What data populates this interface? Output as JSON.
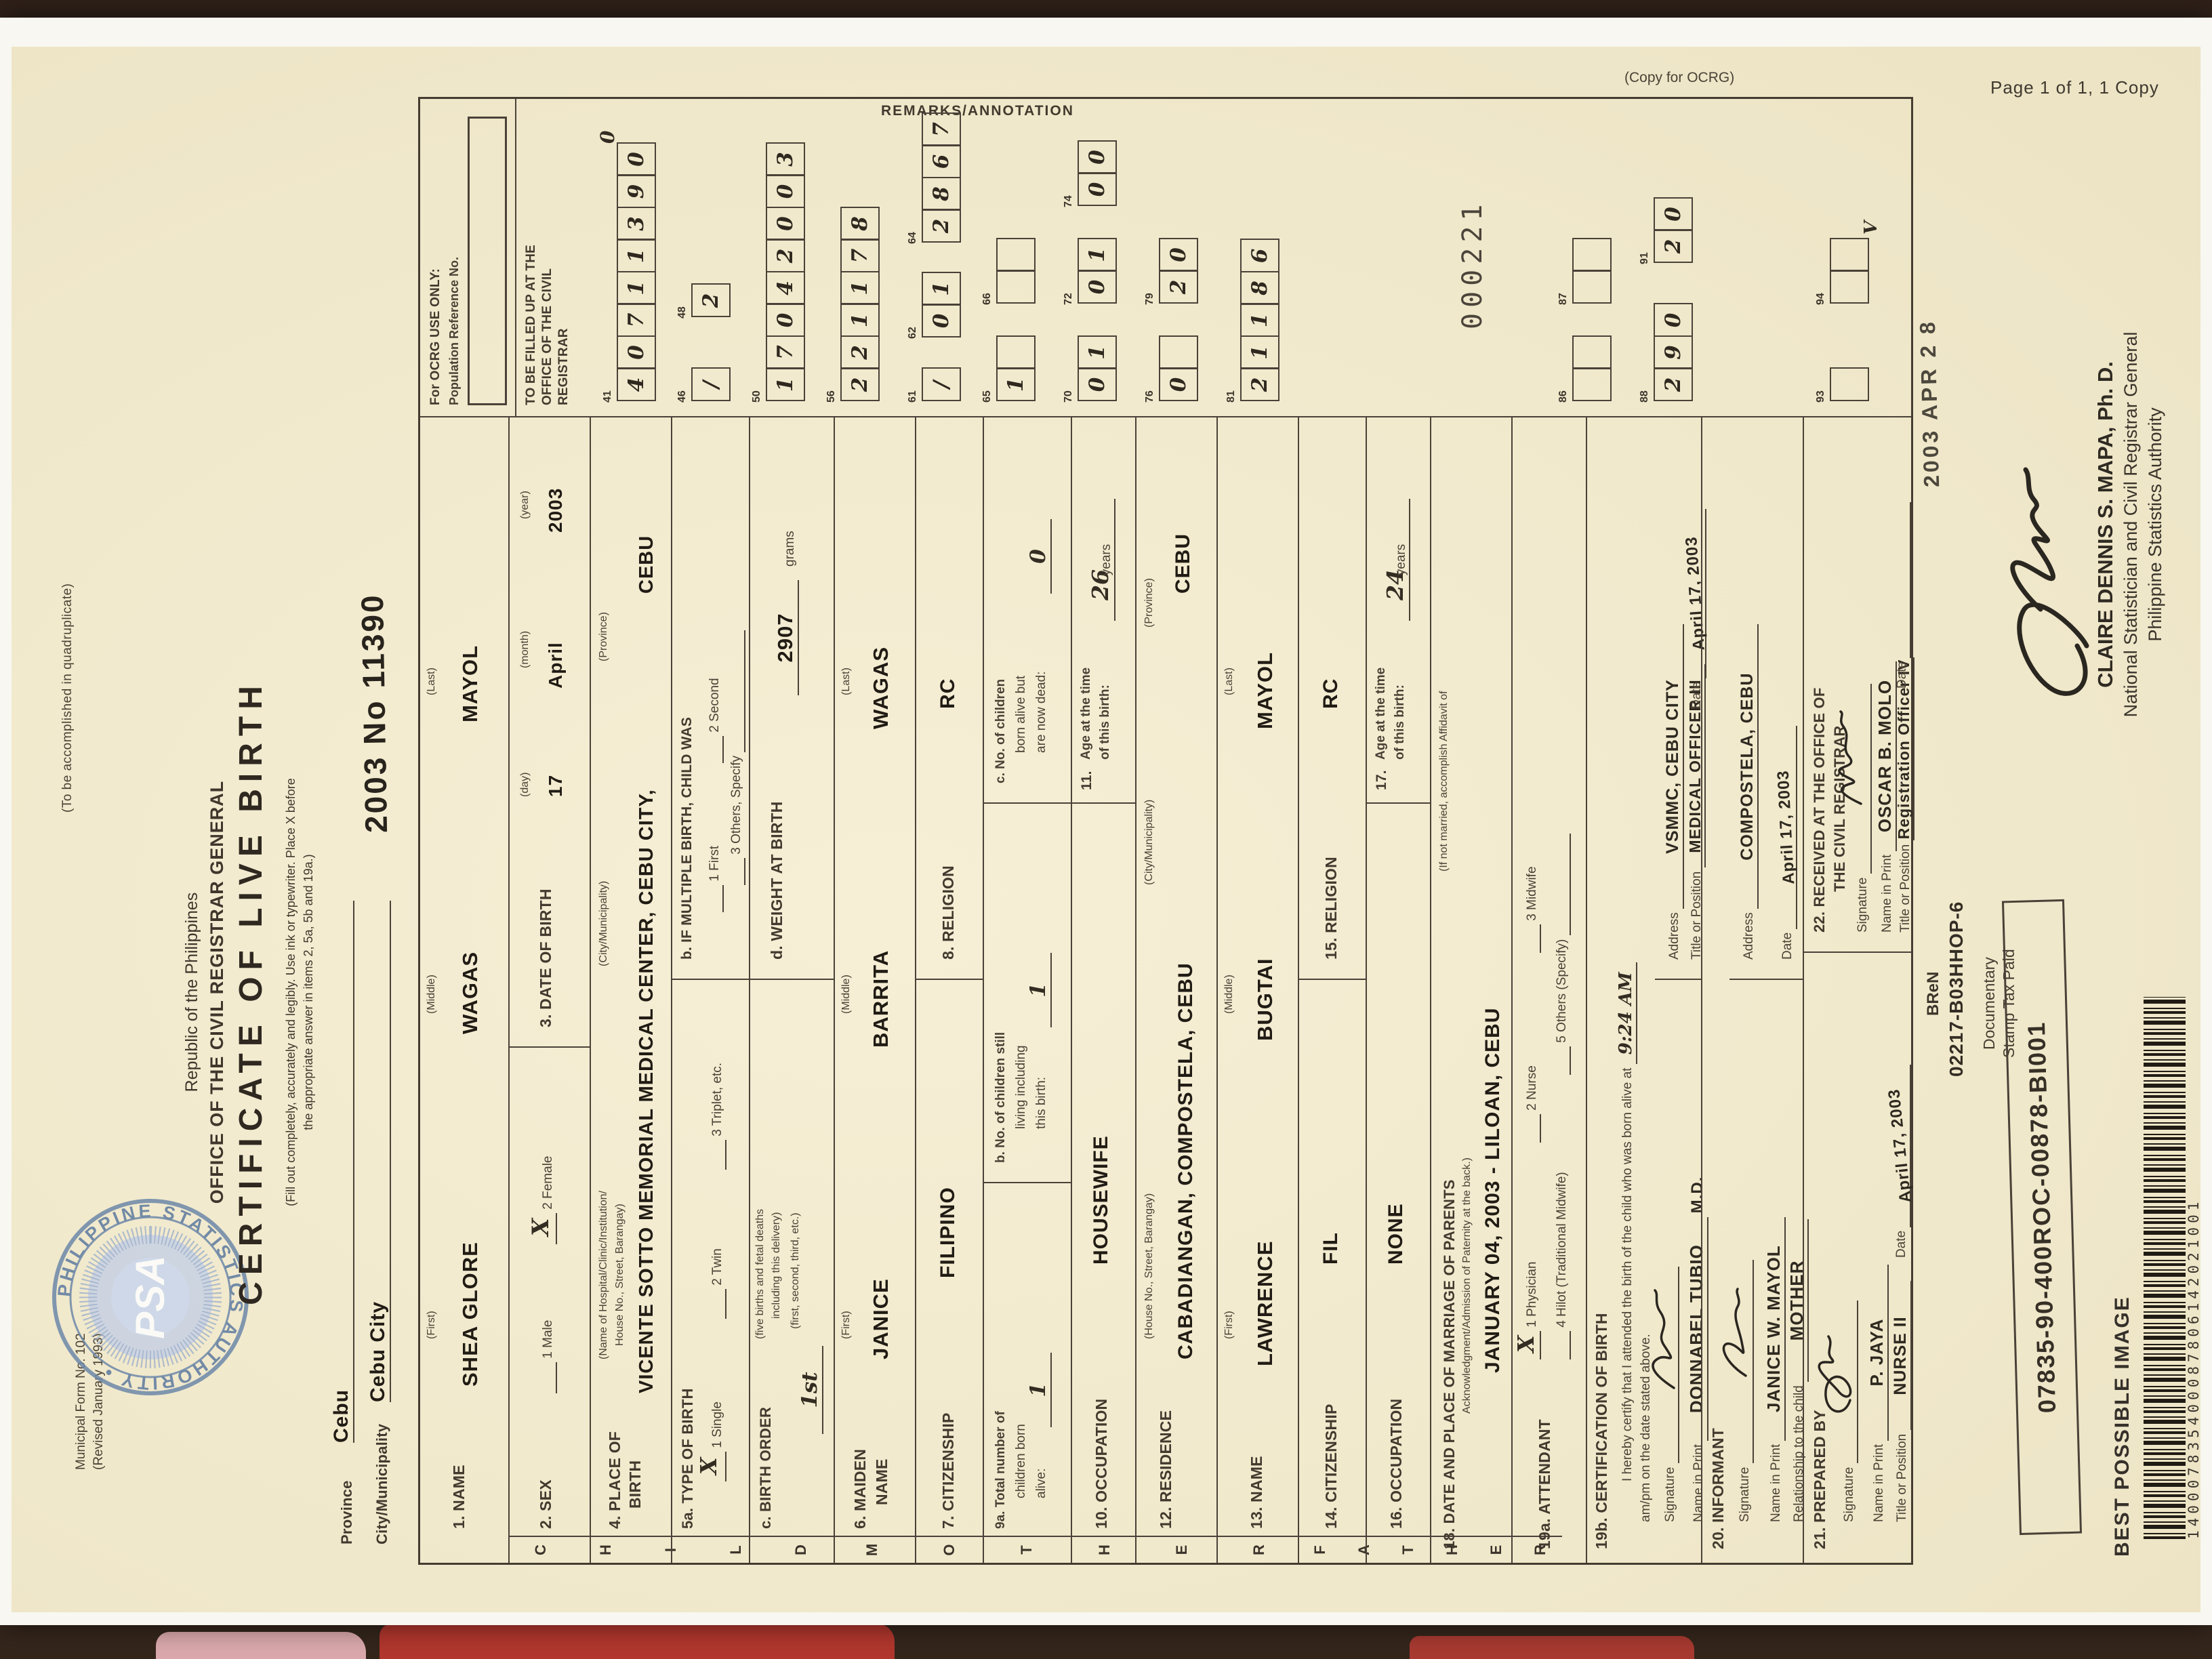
{
  "photo": {
    "page_label": "Page 1 of 1, 1 Copy",
    "copy_label": "(Copy for OCRG)"
  },
  "margin": {
    "form_no": "Municipal Form No. 102",
    "revised": "(Revised January 1993)",
    "quadruplicate": "(To be accomplished in quadruplicate)"
  },
  "header": {
    "republic": "Republic of the Philippines",
    "office": "OFFICE OF THE CIVIL REGISTRAR GENERAL",
    "title": "CERTIFICATE OF LIVE BIRTH",
    "instruction1": "(Fill out completely, accurately and legibly. Use ink or typewriter. Place X before",
    "instruction2": "the appropriate answer in items 2, 5a, 5b and 19a.)",
    "province_label": "Province",
    "province_value": "Cebu",
    "city_label": "City/Municipality",
    "city_value": "Cebu City",
    "registry_value": "2003 No 11390"
  },
  "side_tabs": {
    "child": "CHILD",
    "mother": "MOTHER",
    "father": "FATHER"
  },
  "child": {
    "name_label": "1. NAME",
    "first_label": "(First)",
    "middle_label": "(Middle)",
    "last_label": "(Last)",
    "first": "SHEA GLORE",
    "middle": "WAGAS",
    "last": "MAYOL",
    "sex_label": "2. SEX",
    "male_option": "1 Male",
    "female_option": "2 Female",
    "sex_mark": "X",
    "dob_label": "3. DATE OF BIRTH",
    "day_label": "(day)",
    "month_label": "(month)",
    "year_label": "(year)",
    "day": "17",
    "month": "April",
    "year": "2003",
    "pob_label": "4. PLACE OF",
    "pob_label2": "BIRTH",
    "pob_sub1": "(Name of Hospital/Clinic/Institution/",
    "pob_sub2": "House No., Street, Barangay)",
    "pob_city": "(City/Municipality)",
    "pob_prov": "(Province)",
    "pob_value": "VICENTE SOTTO MEMORIAL MEDICAL CENTER,  CEBU CITY,",
    "pob_value2": "CEBU",
    "tob_label": "5a. TYPE OF BIRTH",
    "tob_mark": "X",
    "tob1": "1 Single",
    "tob2": "2 Twin",
    "tob3": "3 Triplet, etc.",
    "mult_label": "b.  IF MULTIPLE BIRTH, CHILD WAS",
    "mult1": "1 First",
    "mult2": "2 Second",
    "mult3": "3 Others, Specify",
    "order_label": "c.  BIRTH ORDER",
    "order_sub1": "(five births and fetal deaths",
    "order_sub2": "including this delivery)",
    "order_sub3": "(first, second, third, etc.)",
    "order_value": "1st",
    "weight_label": "d. WEIGHT AT BIRTH",
    "weight_value": "2907",
    "grams_label": "grams"
  },
  "mother": {
    "name_label": "6. MAIDEN",
    "name_label2": "NAME",
    "first": "JANICE",
    "middle": "BARRITA",
    "last": "WAGAS",
    "cit_label": "7. CITIZENSHIP",
    "cit": "FILIPINO",
    "rel_label": "8. RELIGION",
    "rel": "RC",
    "a_label1": "9a. Total number of",
    "a_label2": "children born",
    "a_label3": "alive:",
    "a_val": "1",
    "b_label1": "b.  No. of children still",
    "b_label2": "living including",
    "b_label3": "this birth:",
    "b_val": "1",
    "c_label1": "c.  No. of children",
    "c_label2": "born alive but",
    "c_label3": "are now dead:",
    "c_val": "0",
    "occ_label": "10. OCCUPATION",
    "occ": "HOUSEWIFE",
    "age_label1": "11.",
    "age_label2": "Age at the time",
    "age_label3": "of this birth:",
    "age": "26",
    "years": "years",
    "res_label": "12. RESIDENCE",
    "res_sub": "(House No., Street, Barangay)",
    "res_value": "CABADIANGAN, COMPOSTELA, CEBU",
    "res_city_label": "(City/Municipality)",
    "res_prov_label": "(Province)",
    "res_prov": "CEBU"
  },
  "father": {
    "name_label": "13. NAME",
    "first_label": "(First)",
    "middle_label": "(Middle)",
    "last_label": "(Last)",
    "first": "LAWRENCE",
    "middle": "BUGTAI",
    "last": "MAYOL",
    "cit_label": "14. CITIZENSHIP",
    "cit": "FIL",
    "rel_label": "15. RELIGION",
    "rel": "RC",
    "occ_label": "16. OCCUPATION",
    "occ": "NONE",
    "age_label1": "17.",
    "age_label2": "Age at the time",
    "age_label3": "of this birth:",
    "age": "24",
    "years": "years"
  },
  "marriage": {
    "label": "18. DATE AND PLACE OF MARRIAGE OF PARENTS",
    "label2": "(If not married, accomplish Affidavit of",
    "label3": "Acknowledgment/Admission of Paternity at the back.)",
    "value": "JANUARY 04, 2003   -   LILOAN, CEBU"
  },
  "attendant": {
    "label": "19a. ATTENDANT",
    "mark": "X",
    "o1": "1 Physician",
    "o2": "2 Nurse",
    "o3": "3 Midwife",
    "o4": "4 Hilot (Traditional Midwife)",
    "o5": "5 Others (Specify)"
  },
  "certification": {
    "label": "19b. CERTIFICATION OF BIRTH",
    "text1": "I hereby certify that I attended the birth of the child who was born alive at",
    "time": "9:24 AM",
    "text2": "am/pm on the date stated above.",
    "sig_label": "Signature",
    "name_label": "Name in Print",
    "title_label": "Title or Position",
    "addr_label": "Address",
    "date_label": "Date",
    "name": "DONNABEL TUBIO",
    "name_suffix": "M.D.",
    "title": "MEDICAL OFFICER III",
    "address": "VSMMC, CEBU CITY",
    "date": "April 17, 2003"
  },
  "informant": {
    "label": "20. INFORMANT",
    "sig_label": "Signature",
    "name_label": "Name in Print",
    "rel_label": "Relationship to the child",
    "addr_label": "Address",
    "date_label": "Date",
    "name": "JANICE W. MAYOL",
    "relationship": "MOTHER",
    "address": "COMPOSTELA, CEBU",
    "date": "April 17, 2003"
  },
  "prepared": {
    "label": "21. PREPARED BY",
    "sig_label": "Signature",
    "name_label": "Name in Print",
    "title_label": "Title or Position",
    "date_label": "Date",
    "name": "P. JAYA",
    "title": "NURSE II",
    "date": "April 17, 2003"
  },
  "received": {
    "label1": "22. RECEIVED AT THE OFFICE OF",
    "label2": "THE CIVIL REGISTRAR",
    "sig_label": "Signature",
    "name_label": "Name in Print",
    "title_label": "Title or Position",
    "date_label": "Date",
    "name": "OSCAR B. MOLO",
    "title": "Registration Officer IV",
    "date_stamp": "2003  APR 2 8"
  },
  "remarks": {
    "header": "REMARKS/ANNOTATION",
    "ocrg_only": "For OCRG USE ONLY:",
    "popref": "Population Reference No.",
    "fill_up1": "TO BE FILLED UP AT THE",
    "fill_up2": "OFFICE OF THE CIVIL",
    "fill_up3": "REGISTRAR",
    "serial": "000221",
    "extra41": "0",
    "extra94": "V",
    "groups": [
      {
        "no": "41",
        "cells": "40711390"
      },
      {
        "no": "46",
        "cells": "/"
      },
      {
        "no": "48",
        "cells": "2"
      },
      {
        "no": "50",
        "cells": "17042003"
      },
      {
        "no": "56",
        "cells": "221178"
      },
      {
        "no": "61",
        "cells": "/"
      },
      {
        "no": "62",
        "cells": "01"
      },
      {
        "no": "64",
        "cells": "2867"
      },
      {
        "no": "65",
        "cells": "1_"
      },
      {
        "no": "66",
        "cells": "__"
      },
      {
        "no": "70",
        "cells": "01"
      },
      {
        "no": "72",
        "cells": "01"
      },
      {
        "no": "74",
        "cells": "00"
      },
      {
        "no": "76",
        "cells": "0_"
      },
      {
        "no": "79",
        "cells": "20"
      },
      {
        "no": "81",
        "cells": "21186"
      },
      {
        "no": "86",
        "cells": "__"
      },
      {
        "no": "87",
        "cells": "__"
      },
      {
        "no": "88",
        "cells": "290"
      },
      {
        "no": "91",
        "cells": "20"
      },
      {
        "no": "93",
        "cells": "_"
      },
      {
        "no": "94",
        "cells": "__"
      }
    ]
  },
  "footer": {
    "bren": "BReN",
    "bren_no": "02217-B03HHOP-6",
    "doc1": "Documentary",
    "doc2": "Stamp Tax Paid",
    "roc": "07835-90-400ROC-00878-BI001",
    "best": "BEST POSSIBLE IMAGE",
    "barcode_digits": "140007835400087806142021001",
    "signer": "CLAIRE DENNIS S. MAPA, Ph. D.",
    "signer_title": "National Statistician and Civil Registrar General",
    "signer_org": "Philippine Statistics Authority"
  },
  "psa_stamp": {
    "ring": "PHILIPPINE STATISTICS AUTHORITY •",
    "center": "PSA"
  }
}
